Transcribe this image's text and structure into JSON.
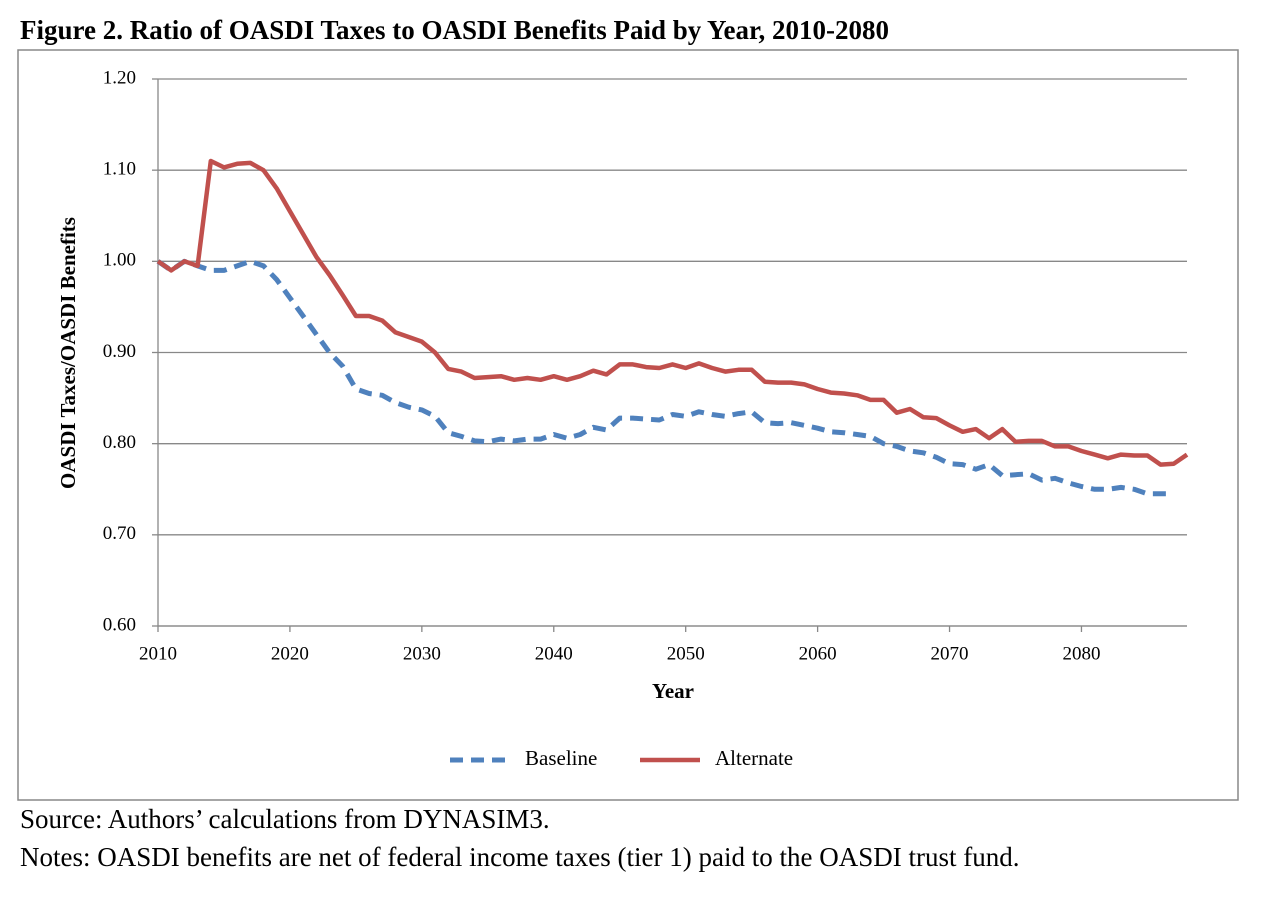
{
  "chart_data": {
    "type": "line",
    "title": "Figure 2. Ratio of OASDI Taxes to OASDI Benefits Paid by Year, 2010-2080",
    "x_label": "Year",
    "y_label": "OASDI Taxes/OASDI Benefits",
    "source": "Source: Authors’ calculations from DYNASIM3.",
    "notes": "Notes: OASDI benefits are net of federal income taxes (tier 1) paid to the OASDI trust fund.",
    "x": [
      2010,
      2011,
      2012,
      2013,
      2014,
      2015,
      2016,
      2017,
      2018,
      2019,
      2020,
      2021,
      2022,
      2023,
      2024,
      2025,
      2026,
      2027,
      2028,
      2029,
      2030,
      2031,
      2032,
      2033,
      2034,
      2035,
      2036,
      2037,
      2038,
      2039,
      2040,
      2041,
      2042,
      2043,
      2044,
      2045,
      2046,
      2047,
      2048,
      2049,
      2050,
      2051,
      2052,
      2053,
      2054,
      2055,
      2056,
      2057,
      2058,
      2059,
      2060,
      2061,
      2062,
      2063,
      2064,
      2065,
      2066,
      2067,
      2068,
      2069,
      2070,
      2071,
      2072,
      2073,
      2074,
      2075,
      2076,
      2077,
      2078,
      2079,
      2080,
      2081,
      2082,
      2083,
      2084,
      2085,
      2086,
      2087,
      2088
    ],
    "series": [
      {
        "name": "Baseline",
        "color": "#4f81bd",
        "dashed": true,
        "values": [
          1.0,
          0.99,
          1.0,
          0.995,
          0.99,
          0.99,
          0.995,
          1.0,
          0.995,
          0.98,
          0.96,
          0.94,
          0.92,
          0.9,
          0.885,
          0.86,
          0.855,
          0.853,
          0.845,
          0.84,
          0.837,
          0.83,
          0.812,
          0.808,
          0.803,
          0.802,
          0.805,
          0.803,
          0.805,
          0.805,
          0.81,
          0.806,
          0.81,
          0.818,
          0.815,
          0.828,
          0.828,
          0.827,
          0.826,
          0.832,
          0.83,
          0.835,
          0.832,
          0.83,
          0.833,
          0.835,
          0.823,
          0.822,
          0.823,
          0.82,
          0.817,
          0.813,
          0.812,
          0.81,
          0.808,
          0.8,
          0.797,
          0.792,
          0.79,
          0.785,
          0.778,
          0.777,
          0.772,
          0.777,
          0.765,
          0.766,
          0.767,
          0.76,
          0.762,
          0.757,
          0.753,
          0.75,
          0.75,
          0.752,
          0.75,
          0.745,
          0.745,
          0.745,
          null
        ]
      },
      {
        "name": "Alternate",
        "color": "#c0504d",
        "dashed": false,
        "values": [
          1.0,
          0.99,
          1.0,
          0.995,
          1.11,
          1.103,
          1.107,
          1.108,
          1.1,
          1.08,
          1.055,
          1.03,
          1.005,
          0.985,
          0.963,
          0.94,
          0.94,
          0.935,
          0.922,
          0.917,
          0.912,
          0.9,
          0.882,
          0.879,
          0.872,
          0.873,
          0.874,
          0.87,
          0.872,
          0.87,
          0.874,
          0.87,
          0.874,
          0.88,
          0.876,
          0.887,
          0.887,
          0.884,
          0.883,
          0.887,
          0.883,
          0.888,
          0.883,
          0.879,
          0.881,
          0.881,
          0.868,
          0.867,
          0.867,
          0.865,
          0.86,
          0.856,
          0.855,
          0.853,
          0.848,
          0.848,
          0.834,
          0.838,
          0.829,
          0.828,
          0.82,
          0.813,
          0.816,
          0.806,
          0.816,
          0.802,
          0.803,
          0.803,
          0.797,
          0.797,
          0.792,
          0.788,
          0.784,
          0.788,
          0.787,
          0.787,
          0.777,
          0.778,
          0.788
        ]
      }
    ],
    "xlim": [
      2010,
      2088
    ],
    "xticks": [
      2010,
      2020,
      2030,
      2040,
      2050,
      2060,
      2070,
      2080
    ],
    "ylim": [
      0.6,
      1.2
    ],
    "yticks": [
      {
        "value": 0.6,
        "label": "0.60"
      },
      {
        "value": 0.7,
        "label": "0.70"
      },
      {
        "value": 0.8,
        "label": "0.80"
      },
      {
        "value": 0.9,
        "label": "0.90"
      },
      {
        "value": 1.0,
        "label": "1.00"
      },
      {
        "value": 1.1,
        "label": "1.10"
      },
      {
        "value": 1.2,
        "label": "1.20"
      }
    ],
    "grid": true,
    "legend": "bottom"
  }
}
